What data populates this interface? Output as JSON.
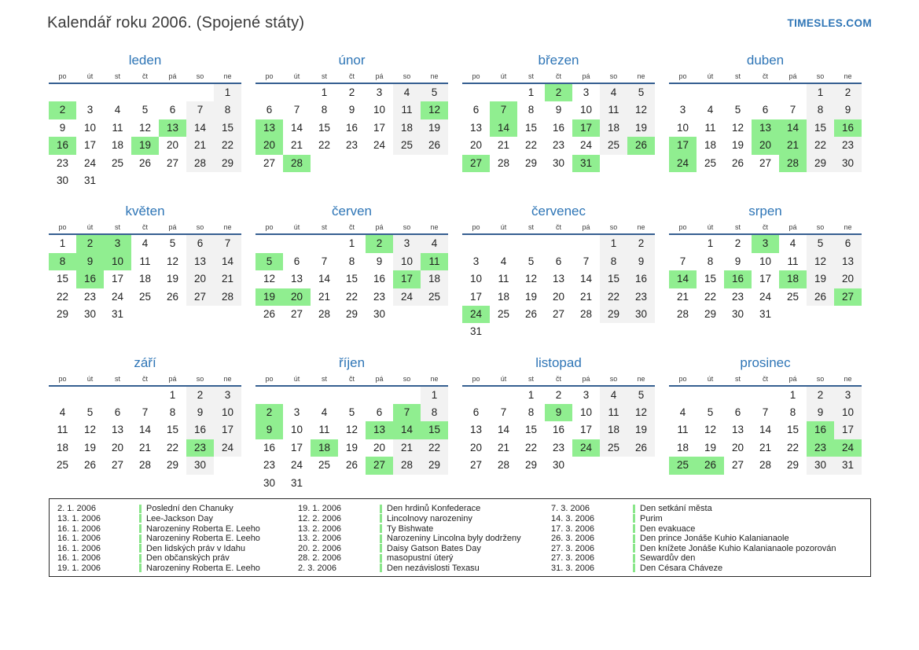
{
  "page": {
    "title": "Kalendář roku 2006. (Spojené státy)",
    "logo": "TIMESLES.COM"
  },
  "colors": {
    "accent_blue": "#2e75b6",
    "header_line_blue": "#365f91",
    "holiday_green": "#90ee90",
    "weekend_gray": "#f2f2f2"
  },
  "calendar": {
    "year": "2006",
    "day_headers": [
      "po",
      "út",
      "st",
      "čt",
      "pá",
      "so",
      "ne"
    ],
    "weekend_columns": [
      5,
      6
    ],
    "months": [
      {
        "name": "leden",
        "weeks": [
          [
            null,
            null,
            null,
            null,
            null,
            null,
            1
          ],
          [
            2,
            3,
            4,
            5,
            6,
            7,
            8
          ],
          [
            9,
            10,
            11,
            12,
            13,
            14,
            15
          ],
          [
            16,
            17,
            18,
            19,
            20,
            21,
            22
          ],
          [
            23,
            24,
            25,
            26,
            27,
            28,
            29
          ],
          [
            30,
            31,
            null,
            null,
            null,
            null,
            null
          ]
        ],
        "highlighted": [
          2,
          13,
          16,
          19
        ]
      },
      {
        "name": "únor",
        "weeks": [
          [
            null,
            null,
            1,
            2,
            3,
            4,
            5
          ],
          [
            6,
            7,
            8,
            9,
            10,
            11,
            12
          ],
          [
            13,
            14,
            15,
            16,
            17,
            18,
            19
          ],
          [
            20,
            21,
            22,
            23,
            24,
            25,
            26
          ],
          [
            27,
            28,
            null,
            null,
            null,
            null,
            null
          ]
        ],
        "highlighted": [
          12,
          13,
          20,
          28
        ]
      },
      {
        "name": "březen",
        "weeks": [
          [
            null,
            null,
            1,
            2,
            3,
            4,
            5
          ],
          [
            6,
            7,
            8,
            9,
            10,
            11,
            12
          ],
          [
            13,
            14,
            15,
            16,
            17,
            18,
            19
          ],
          [
            20,
            21,
            22,
            23,
            24,
            25,
            26
          ],
          [
            27,
            28,
            29,
            30,
            31,
            null,
            null
          ]
        ],
        "highlighted": [
          2,
          7,
          14,
          17,
          26,
          27,
          31
        ]
      },
      {
        "name": "duben",
        "weeks": [
          [
            null,
            null,
            null,
            null,
            null,
            1,
            2
          ],
          [
            3,
            4,
            5,
            6,
            7,
            8,
            9
          ],
          [
            10,
            11,
            12,
            13,
            14,
            15,
            16
          ],
          [
            17,
            18,
            19,
            20,
            21,
            22,
            23
          ],
          [
            24,
            25,
            26,
            27,
            28,
            29,
            30
          ]
        ],
        "highlighted": [
          13,
          14,
          16,
          17,
          20,
          21,
          24,
          28
        ]
      },
      {
        "name": "květen",
        "weeks": [
          [
            1,
            2,
            3,
            4,
            5,
            6,
            7
          ],
          [
            8,
            9,
            10,
            11,
            12,
            13,
            14
          ],
          [
            15,
            16,
            17,
            18,
            19,
            20,
            21
          ],
          [
            22,
            23,
            24,
            25,
            26,
            27,
            28
          ],
          [
            29,
            30,
            31,
            null,
            null,
            null,
            null
          ]
        ],
        "highlighted": [
          2,
          3,
          8,
          9,
          10,
          16
        ]
      },
      {
        "name": "červen",
        "weeks": [
          [
            null,
            null,
            null,
            1,
            2,
            3,
            4
          ],
          [
            5,
            6,
            7,
            8,
            9,
            10,
            11
          ],
          [
            12,
            13,
            14,
            15,
            16,
            17,
            18
          ],
          [
            19,
            20,
            21,
            22,
            23,
            24,
            25
          ],
          [
            26,
            27,
            28,
            29,
            30,
            null,
            null
          ]
        ],
        "highlighted": [
          2,
          5,
          11,
          17,
          19,
          20
        ]
      },
      {
        "name": "červenec",
        "weeks": [
          [
            null,
            null,
            null,
            null,
            null,
            1,
            2
          ],
          [
            3,
            4,
            5,
            6,
            7,
            8,
            9
          ],
          [
            10,
            11,
            12,
            13,
            14,
            15,
            16
          ],
          [
            17,
            18,
            19,
            20,
            21,
            22,
            23
          ],
          [
            24,
            25,
            26,
            27,
            28,
            29,
            30
          ],
          [
            31,
            null,
            null,
            null,
            null,
            null,
            null
          ]
        ],
        "highlighted": [
          24
        ]
      },
      {
        "name": "srpen",
        "weeks": [
          [
            null,
            1,
            2,
            3,
            4,
            5,
            6
          ],
          [
            7,
            8,
            9,
            10,
            11,
            12,
            13
          ],
          [
            14,
            15,
            16,
            17,
            18,
            19,
            20
          ],
          [
            21,
            22,
            23,
            24,
            25,
            26,
            27
          ],
          [
            28,
            29,
            30,
            31,
            null,
            null,
            null
          ]
        ],
        "highlighted": [
          3,
          14,
          16,
          18,
          27
        ]
      },
      {
        "name": "září",
        "weeks": [
          [
            null,
            null,
            null,
            null,
            1,
            2,
            3
          ],
          [
            4,
            5,
            6,
            7,
            8,
            9,
            10
          ],
          [
            11,
            12,
            13,
            14,
            15,
            16,
            17
          ],
          [
            18,
            19,
            20,
            21,
            22,
            23,
            24
          ],
          [
            25,
            26,
            27,
            28,
            29,
            30,
            null
          ]
        ],
        "highlighted": [
          23
        ]
      },
      {
        "name": "říjen",
        "weeks": [
          [
            null,
            null,
            null,
            null,
            null,
            null,
            1
          ],
          [
            2,
            3,
            4,
            5,
            6,
            7,
            8
          ],
          [
            9,
            10,
            11,
            12,
            13,
            14,
            15
          ],
          [
            16,
            17,
            18,
            19,
            20,
            21,
            22
          ],
          [
            23,
            24,
            25,
            26,
            27,
            28,
            29
          ],
          [
            30,
            31,
            null,
            null,
            null,
            null,
            null
          ]
        ],
        "highlighted": [
          2,
          7,
          9,
          13,
          14,
          15,
          18,
          27
        ]
      },
      {
        "name": "listopad",
        "weeks": [
          [
            null,
            null,
            1,
            2,
            3,
            4,
            5
          ],
          [
            6,
            7,
            8,
            9,
            10,
            11,
            12
          ],
          [
            13,
            14,
            15,
            16,
            17,
            18,
            19
          ],
          [
            20,
            21,
            22,
            23,
            24,
            25,
            26
          ],
          [
            27,
            28,
            29,
            30,
            null,
            null,
            null
          ]
        ],
        "highlighted": [
          9,
          24
        ]
      },
      {
        "name": "prosinec",
        "weeks": [
          [
            null,
            null,
            null,
            null,
            1,
            2,
            3
          ],
          [
            4,
            5,
            6,
            7,
            8,
            9,
            10
          ],
          [
            11,
            12,
            13,
            14,
            15,
            16,
            17
          ],
          [
            18,
            19,
            20,
            21,
            22,
            23,
            24
          ],
          [
            25,
            26,
            27,
            28,
            29,
            30,
            31
          ]
        ],
        "highlighted": [
          16,
          23,
          24,
          25,
          26
        ]
      }
    ]
  },
  "legend": {
    "columns": [
      [
        {
          "date": "2. 1. 2006",
          "name": "Poslední den Chanuky"
        },
        {
          "date": "13. 1. 2006",
          "name": "Lee-Jackson Day"
        },
        {
          "date": "16. 1. 2006",
          "name": "Narozeniny Roberta E. Leeho"
        },
        {
          "date": "16. 1. 2006",
          "name": "Narozeniny Roberta E. Leeho"
        },
        {
          "date": "16. 1. 2006",
          "name": "Den lidských práv v Idahu"
        },
        {
          "date": "16. 1. 2006",
          "name": "Den občanských práv"
        },
        {
          "date": "19. 1. 2006",
          "name": "Narozeniny Roberta E. Leeho"
        }
      ],
      [
        {
          "date": "19. 1. 2006",
          "name": "Den hrdinů Konfederace"
        },
        {
          "date": "12. 2. 2006",
          "name": "Lincolnovy narozeniny"
        },
        {
          "date": "13. 2. 2006",
          "name": "Ty Bishwate"
        },
        {
          "date": "13. 2. 2006",
          "name": "Narozeniny Lincolna byly dodrženy"
        },
        {
          "date": "20. 2. 2006",
          "name": "Daisy Gatson Bates Day"
        },
        {
          "date": "28. 2. 2006",
          "name": "masopustní úterý"
        },
        {
          "date": "2. 3. 2006",
          "name": "Den nezávislosti Texasu"
        }
      ],
      [
        {
          "date": "7. 3. 2006",
          "name": "Den setkání města"
        },
        {
          "date": "14. 3. 2006",
          "name": "Purim"
        },
        {
          "date": "17. 3. 2006",
          "name": "Den evakuace"
        },
        {
          "date": "26. 3. 2006",
          "name": "Den prince Jonáše Kuhio Kalanianaole"
        },
        {
          "date": "27. 3. 2006",
          "name": "Den knížete Jonáše Kuhio Kalanianaole pozorován"
        },
        {
          "date": "27. 3. 2006",
          "name": "Sewardův den"
        },
        {
          "date": "31. 3. 2006",
          "name": "Den Césara Cháveze"
        }
      ]
    ]
  }
}
